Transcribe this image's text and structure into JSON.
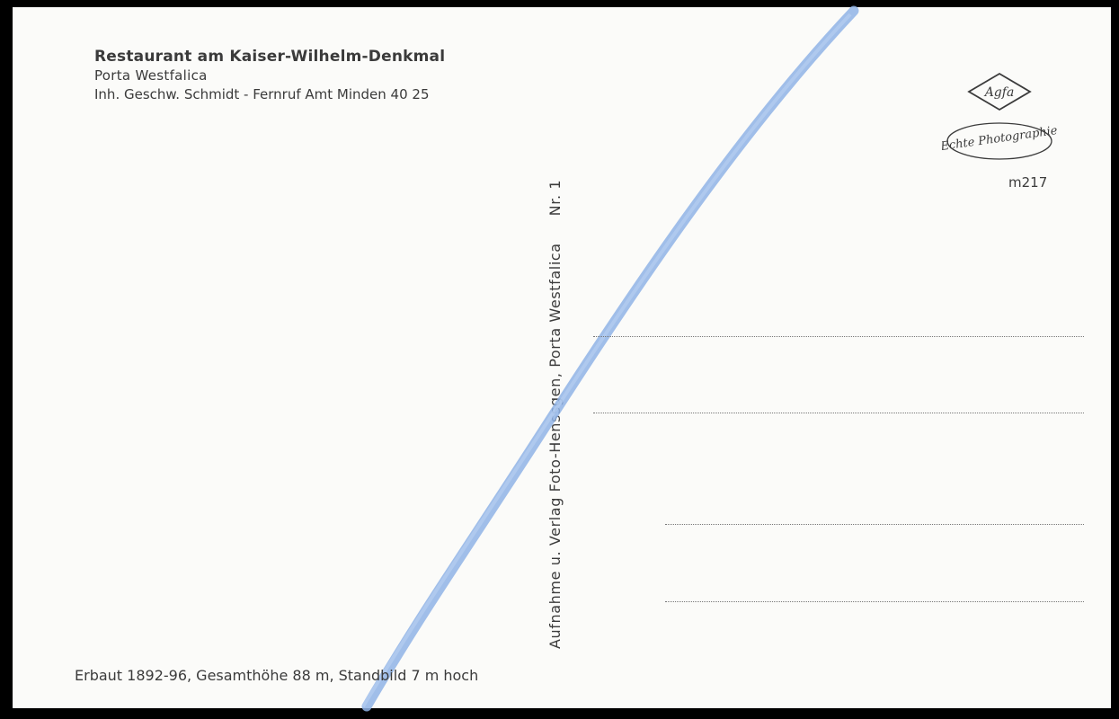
{
  "header": {
    "title": "Restaurant am Kaiser-Wilhelm-Denkmal",
    "location": "Porta Westfalica",
    "owner_line": "Inh. Geschw. Schmidt - Fernruf Amt Minden 40 25"
  },
  "publisher": {
    "vertical_text": "Aufnahme u. Verlag Foto-Henssgen, Porta Westfalica",
    "number": "Nr. 1"
  },
  "logo": {
    "brand": "Agfa",
    "tagline": "Echte Photographie"
  },
  "card_code": "m217",
  "footer": "Erbaut 1892-96, Gesamthöhe 88 m, Standbild 7 m hoch",
  "colors": {
    "paper": "#fbfbf9",
    "ink": "#3b3b3b",
    "pencil_stroke": "#8fb3e6"
  }
}
